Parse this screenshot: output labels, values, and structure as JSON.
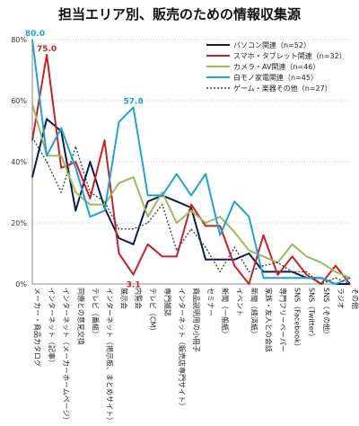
{
  "chart_data": {
    "type": "line",
    "title": "担当エリア別、販売のための情報収集源",
    "xlabel": "",
    "ylabel": "",
    "ylim": [
      0,
      80
    ],
    "y_ticks": [
      "0%",
      "20%",
      "40%",
      "60%",
      "80%"
    ],
    "grid": "horizontal dotted",
    "legend_position": "top-right",
    "categories": [
      "メーカー・商品カタログ",
      "インターネット（記事）",
      "インターネット（メーカーホームページ）",
      "同僚との意見交換",
      "テレビ（番組）",
      "インターネット（掲示板、まとめサイト）",
      "展示会",
      "内覧会",
      "テレビ（CM）",
      "専門雑誌",
      "インターネット（販売店専門サイト）",
      "商品説明用の小冊子",
      "セミナー",
      "新聞（一般紙）",
      "イベント",
      "新聞（経済紙）",
      "家族・友人との会話",
      "専門フリーペーパー",
      "SNS（Facebook）",
      "SNS（Twitter）",
      "SNS（その他）",
      "ラジオ",
      "その他"
    ],
    "series": [
      {
        "name": "パソコン関連（n=52）",
        "color": "#0d1b4b",
        "dash": "",
        "values": [
          35,
          54,
          50,
          24,
          40,
          25,
          15,
          13,
          27,
          29,
          27,
          25,
          8,
          8,
          8,
          10,
          4,
          4,
          4,
          2,
          2,
          0,
          0
        ]
      },
      {
        "name": "スマホ・タブレット関連（n=32）",
        "color": "#cc1f26",
        "dash": "",
        "values": [
          47,
          75,
          38,
          40,
          28,
          47,
          10,
          3.1,
          13,
          9,
          9,
          26,
          19,
          19,
          6,
          0,
          16,
          3,
          9,
          3,
          0,
          6,
          0
        ]
      },
      {
        "name": "カメラ・AV関連（n=46）",
        "color": "#9bbb59",
        "dash": "",
        "values": [
          59,
          42,
          42,
          30,
          26,
          26,
          33,
          35,
          22,
          30,
          20,
          24,
          20,
          22,
          17,
          11,
          9,
          7,
          13,
          9,
          7,
          4,
          2
        ]
      },
      {
        "name": "白モノ家電関連（n=45）",
        "color": "#1ea3d6",
        "dash": "",
        "values": [
          80,
          42,
          51,
          38,
          22,
          24,
          53,
          57.8,
          29,
          29,
          36,
          29,
          36,
          16,
          27,
          22,
          2,
          2,
          2,
          2,
          2,
          0,
          2
        ]
      },
      {
        "name": "ゲーム・楽器その他（n=27）",
        "color": "#444444",
        "dash": "2,2",
        "values": [
          48,
          40,
          30,
          45,
          30,
          27,
          18,
          18,
          20,
          26,
          11,
          18,
          12,
          4,
          12,
          4,
          6,
          7,
          4,
          4,
          0,
          2,
          0
        ]
      }
    ],
    "annotations": [
      {
        "text": "80.0",
        "series": 3,
        "index": 0
      },
      {
        "text": "75.0",
        "series": 1,
        "index": 1
      },
      {
        "text": "57.8",
        "series": 3,
        "index": 7
      },
      {
        "text": "3.1",
        "series": 1,
        "index": 7
      }
    ]
  }
}
